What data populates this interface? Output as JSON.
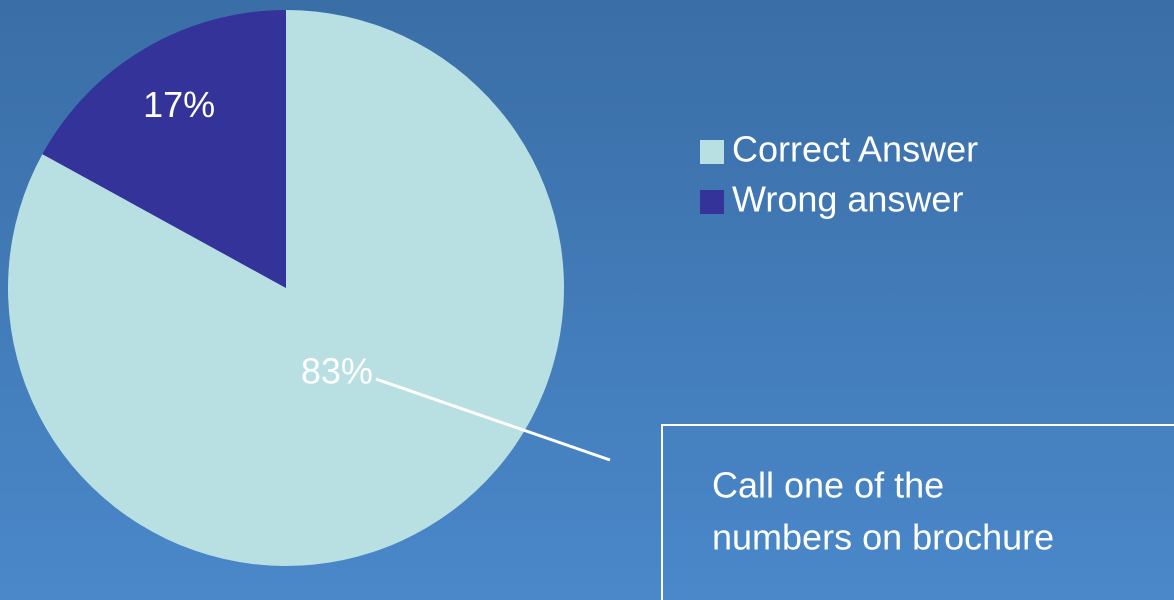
{
  "chart_data": {
    "type": "pie",
    "categories": [
      "Correct Answer",
      "Wrong answer"
    ],
    "values": [
      83,
      17
    ],
    "value_labels": [
      "83%",
      "17%"
    ],
    "colors": [
      "#b8e0e3",
      "#333399"
    ],
    "legend": "right",
    "annotation": [
      "Call one of the",
      "numbers on brochure"
    ]
  }
}
